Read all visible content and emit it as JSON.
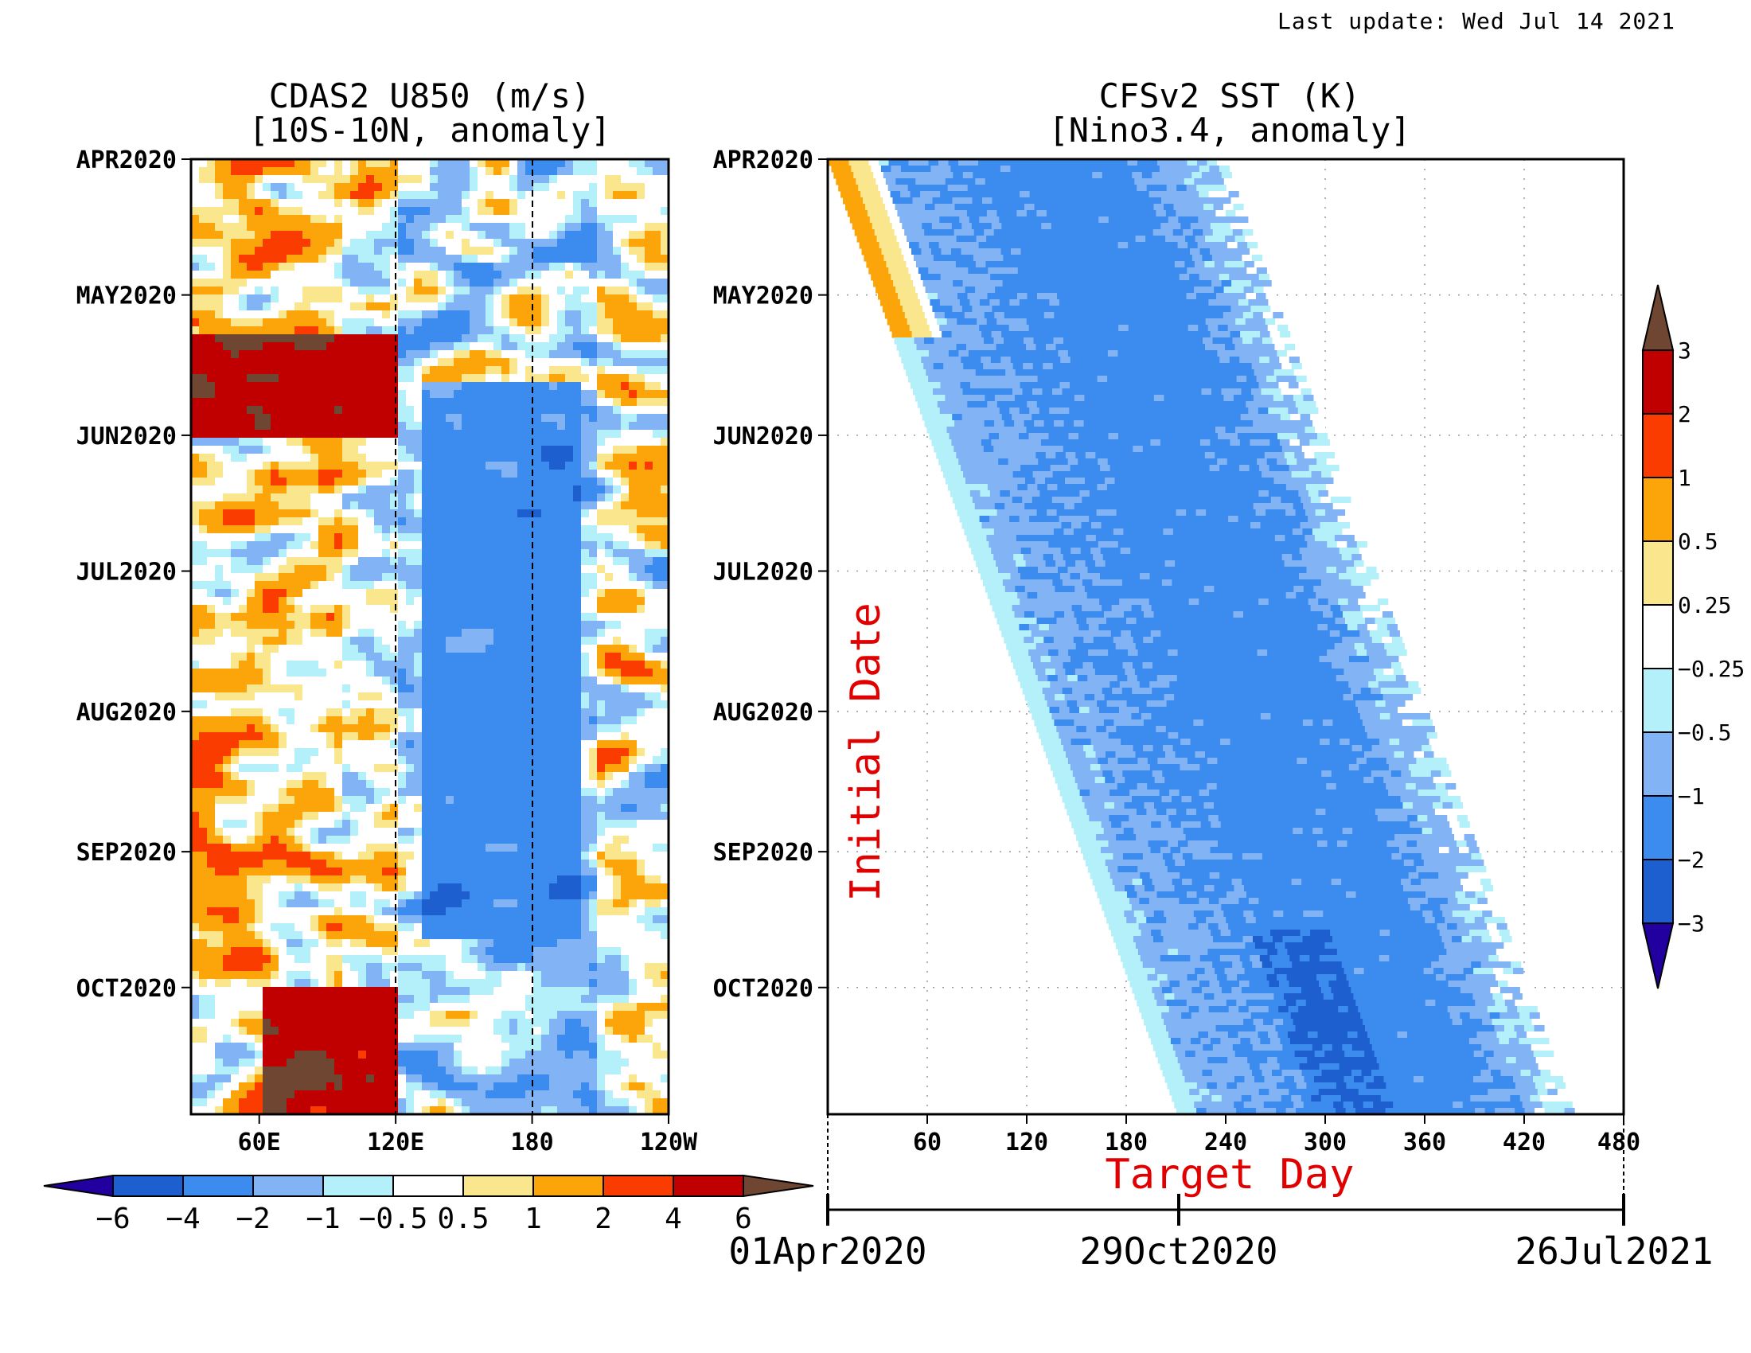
{
  "last_update": "Last update: Wed Jul 14 2021",
  "colors": {
    "levels": [
      "#2200a0",
      "#1e5fd0",
      "#3c8cf0",
      "#82b4f5",
      "#b4f0fa",
      "#ffffff",
      "#fae68c",
      "#fca50a",
      "#fa3c00",
      "#c00000",
      "#6e4632"
    ]
  },
  "chart_data": [
    {
      "type": "heatmap",
      "title": "CDAS2 U850 (m/s)",
      "subtitle": "[10S-10N, anomaly]",
      "xlabel": "",
      "ylabel": "",
      "x_ticks": [
        "60E",
        "120E",
        "180",
        "120W"
      ],
      "x_tick_values": [
        60,
        120,
        180,
        240
      ],
      "xlim": [
        30,
        240
      ],
      "y_ticks": [
        "APR2020",
        "MAY2020",
        "JUN2020",
        "JUL2020",
        "AUG2020",
        "SEP2020",
        "OCT2020"
      ],
      "ylim": [
        "2020-04-01",
        "2020-10-29"
      ],
      "reference_lines_lon": [
        120,
        180
      ],
      "colorbar": {
        "orientation": "horizontal",
        "levels": [
          -6,
          -4,
          -2,
          -1,
          -0.5,
          0.5,
          1,
          2,
          4,
          6
        ],
        "labels": [
          "−6",
          "−4",
          "−2",
          "−1",
          "−0.5",
          "0.5",
          "1",
          "2",
          "4",
          "6"
        ]
      },
      "description_regions": [
        {
          "lon": [
            30,
            120
          ],
          "date": [
            "2020-05-10",
            "2020-06-01"
          ],
          "value": 5
        },
        {
          "lon": [
            60,
            120
          ],
          "date": [
            "2020-10-01",
            "2020-10-29"
          ],
          "value": 5
        },
        {
          "lon": [
            130,
            200
          ],
          "date": [
            "2020-05-20",
            "2020-09-20"
          ],
          "value": -2
        }
      ]
    },
    {
      "type": "heatmap",
      "title": "CFSv2 SST (K)",
      "subtitle": "[Nino3.4, anomaly]",
      "xlabel": "Target Day",
      "ylabel": "Initial Date",
      "x_ticks": [
        "60",
        "120",
        "180",
        "240",
        "300",
        "360",
        "420",
        "480"
      ],
      "x_tick_values": [
        60,
        120,
        180,
        240,
        300,
        360,
        420,
        480
      ],
      "xlim": [
        0,
        480
      ],
      "y_ticks": [
        "APR2020",
        "MAY2020",
        "JUN2020",
        "JUL2020",
        "AUG2020",
        "SEP2020",
        "OCT2020"
      ],
      "ylim": [
        "2020-04-01",
        "2020-10-29"
      ],
      "date_axis": {
        "start": "01Apr2020",
        "mid": "29Oct2020",
        "end": "26Jul2021"
      },
      "forecast_lead_days": 240,
      "colorbar": {
        "orientation": "vertical",
        "levels": [
          -3,
          -2,
          -1,
          -0.5,
          -0.25,
          0.25,
          0.5,
          1,
          2,
          3
        ],
        "labels": [
          "−3",
          "−2",
          "−1",
          "−0.5",
          "−0.25",
          "0.25",
          "0.5",
          "1",
          "2",
          "3"
        ]
      },
      "description_regions": [
        {
          "target_day": [
            0,
            40
          ],
          "init": [
            "2020-04-01",
            "2020-05-05"
          ],
          "value": 0.7
        },
        {
          "target_day": [
            120,
            360
          ],
          "init": [
            "2020-04-01",
            "2020-10-29"
          ],
          "value": -1.2
        },
        {
          "target_day": [
            240,
            320
          ],
          "init": [
            "2020-10-01",
            "2020-10-29"
          ],
          "value": -2.3
        }
      ]
    }
  ]
}
